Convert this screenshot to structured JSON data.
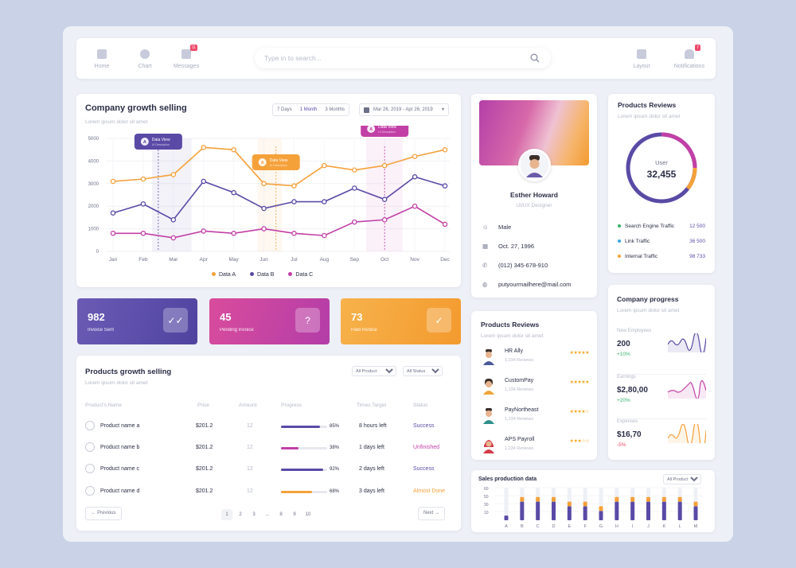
{
  "nav": {
    "items": [
      {
        "label": "Home",
        "icon": "home-icon"
      },
      {
        "label": "Chart",
        "icon": "pie-chart-icon"
      },
      {
        "label": "Messages",
        "icon": "messages-icon",
        "badge": "11"
      }
    ],
    "search_placeholder": "Type in to search...",
    "right_items": [
      {
        "label": "Layout",
        "icon": "layout-icon"
      },
      {
        "label": "Notifications",
        "icon": "bell-icon",
        "badge": "7"
      }
    ]
  },
  "growth_chart": {
    "title": "Company growth selling",
    "subtitle": "Lorem ipsum dolor sit amet",
    "ranges": [
      "7 Days",
      "1 Month",
      "3 Months"
    ],
    "date_range": "Mar 26, 2019 - Apr 26, 2019",
    "tooltip_label": "Data View",
    "tooltip_sub": "UI Description",
    "tooltip_avatar": "A"
  },
  "chart_data": {
    "type": "line",
    "categories": [
      "Jan",
      "Feb",
      "Mar",
      "Apr",
      "May",
      "Jun",
      "Jul",
      "Aug",
      "Sep",
      "Oct",
      "Nov",
      "Dec"
    ],
    "y_ticks": [
      0,
      1000,
      2000,
      3000,
      4000,
      5000
    ],
    "ylim": [
      0,
      5000
    ],
    "series": [
      {
        "name": "Data A",
        "color": "#f5a13a",
        "values": [
          3100,
          3200,
          3400,
          4600,
          4500,
          3000,
          2900,
          3800,
          3600,
          3800,
          4200,
          4500
        ]
      },
      {
        "name": "Data B",
        "color": "#5a4aa6",
        "values": [
          1700,
          2100,
          1400,
          3100,
          2600,
          1900,
          2200,
          2200,
          2800,
          2300,
          3300,
          2900
        ]
      },
      {
        "name": "Data C",
        "color": "#c23fa6",
        "values": [
          800,
          800,
          600,
          900,
          800,
          1000,
          800,
          700,
          1300,
          1400,
          2000,
          1200
        ]
      }
    ],
    "legend_position": "bottom",
    "grid": true
  },
  "tiles": [
    {
      "value": "982",
      "label": "Invoice Sent",
      "icon": "double-check-icon",
      "glyph": "✓✓"
    },
    {
      "value": "45",
      "label": "Pending Invoice",
      "icon": "question-icon",
      "glyph": "?"
    },
    {
      "value": "73",
      "label": "Paid Invoice",
      "icon": "check-circle-icon",
      "glyph": "✓"
    }
  ],
  "products_table": {
    "title": "Products growth selling",
    "subtitle": "Lorem ipsum dolor sit amet",
    "filter_product": "All Product",
    "filter_status": "All Status",
    "headers": [
      "Product's Name",
      "Price",
      "Amount",
      "Progress",
      "Times Target",
      "Status"
    ],
    "rows": [
      {
        "name": "Product name a",
        "price": "$201.2",
        "amount": "12",
        "progress": 0.85,
        "progress_label": "85%",
        "target": "8 hours left",
        "status": "Success",
        "color": "#5a4aa6"
      },
      {
        "name": "Product name b",
        "price": "$201.2",
        "amount": "12",
        "progress": 0.38,
        "progress_label": "38%",
        "target": "1 days left",
        "status": "Unfinished",
        "color": "#c23fa6"
      },
      {
        "name": "Product name c",
        "price": "$201.2",
        "amount": "12",
        "progress": 0.92,
        "progress_label": "92%",
        "target": "2 days left",
        "status": "Success",
        "color": "#5a4aa6"
      },
      {
        "name": "Product name d",
        "price": "$201.2",
        "amount": "12",
        "progress": 0.68,
        "progress_label": "68%",
        "target": "3 days left",
        "status": "Almost Done",
        "color": "#f5a13a"
      }
    ],
    "prev_label": "Previous",
    "next_label": "Next",
    "pages": [
      "1",
      "2",
      "3",
      "...",
      "8",
      "9",
      "10"
    ]
  },
  "profile": {
    "name": "Esther Howard",
    "role": "UI/UX Designer",
    "gender": "Male",
    "birthday": "Oct. 27, 1996",
    "phone": "(012) 345-678-910",
    "email": "putyourmailhere@mail.com"
  },
  "reviews_donut": {
    "title": "Products Reviews",
    "subtitle": "Lorem ipsum dolor sit amet",
    "center_label": "User",
    "center_value": "32,455",
    "legend": [
      {
        "label": "Search Engine Traffic",
        "value": "12 500",
        "color": "#35b36b"
      },
      {
        "label": "Link Traffic",
        "value": "36 500",
        "color": "#3ba3e6"
      },
      {
        "label": "Internal Traffic",
        "value": "98 733",
        "color": "#f5a13a"
      }
    ]
  },
  "reviews_list": {
    "title": "Products Reviews",
    "subtitle": "Lorem ipsum dolor sit amet",
    "items": [
      {
        "name": "HR Ally",
        "count": "1,234 Reviews",
        "stars": "★★★★★"
      },
      {
        "name": "CustomPay",
        "count": "1,234 Reviews",
        "stars": "★★★★★"
      },
      {
        "name": "PayNortheast",
        "count": "1,234 Reviews",
        "stars": "★★★★☆"
      },
      {
        "name": "APS Payroll",
        "count": "1,234 Reviews",
        "stars": "★★★☆☆"
      }
    ]
  },
  "company_progress": {
    "title": "Company progress",
    "subtitle": "Lorem ipsum dolor sit amet",
    "items": [
      {
        "label": "New Employees",
        "value": "200",
        "delta": "+10%",
        "delta_color": "#35b36b",
        "spark_color": "#5a4aa6"
      },
      {
        "label": "Earnings",
        "value": "$2,80,00",
        "delta": "+20%",
        "delta_color": "#35b36b",
        "spark_color": "#c23fa6"
      },
      {
        "label": "Expenses",
        "value": "$16,70",
        "delta": "-5%",
        "delta_color": "#ef4a6b",
        "spark_color": "#f5a13a"
      }
    ]
  },
  "sales_chart": {
    "title": "Sales production data",
    "filter": "All Product",
    "y_ticks": [
      "60",
      "50",
      "30",
      "10"
    ],
    "categories": [
      "A",
      "B",
      "C",
      "D",
      "E",
      "F",
      "G",
      "H",
      "I",
      "J",
      "K",
      "L",
      "M"
    ],
    "values_a": [
      10,
      40,
      40,
      40,
      30,
      30,
      20,
      40,
      40,
      40,
      40,
      40,
      30
    ],
    "values_b": [
      0,
      10,
      10,
      10,
      10,
      10,
      10,
      10,
      10,
      10,
      10,
      10,
      10
    ]
  }
}
